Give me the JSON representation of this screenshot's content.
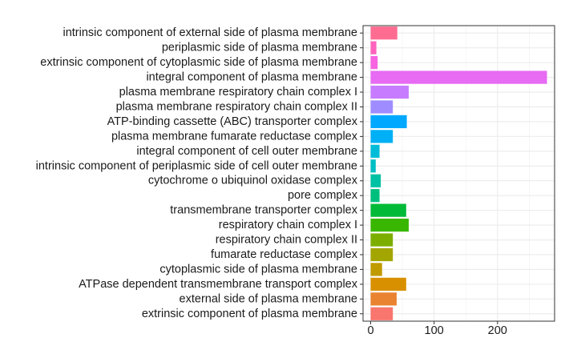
{
  "chart_data": {
    "type": "bar",
    "orientation": "horizontal",
    "title": "",
    "xlabel": "",
    "ylabel": "",
    "xlim": [
      -12,
      290
    ],
    "xticks": [
      0,
      100,
      200
    ],
    "grid": true,
    "legend": "none",
    "categories": [
      "intrinsic component of external side of plasma membrane",
      "periplasmic side of plasma membrane",
      "extrinsic component of cytoplasmic side of plasma membrane",
      "integral component of plasma membrane",
      "plasma membrane respiratory chain complex I",
      "plasma membrane respiratory chain complex II",
      "ATP-binding cassette (ABC) transporter complex",
      "plasma membrane fumarate reductase complex",
      "integral component of cell outer membrane",
      "intrinsic component of periplasmic side of cell outer membrane",
      "cytochrome o ubiquinol oxidase complex",
      "pore complex",
      "transmembrane transporter complex",
      "respiratory chain complex I",
      "respiratory chain complex II",
      "fumarate reductase complex",
      "cytoplasmic side of plasma membrane",
      "ATPase dependent transmembrane transport complex",
      "external side of plasma membrane",
      "extrinsic component of plasma membrane"
    ],
    "values": [
      42,
      9,
      11,
      278,
      60,
      35,
      57,
      35,
      14,
      8,
      16,
      14,
      56,
      60,
      35,
      35,
      18,
      56,
      41,
      35
    ],
    "colors": [
      "#FF6C91",
      "#FF62BC",
      "#F763E0",
      "#E76BF3",
      "#C77CFF",
      "#9F8CFF",
      "#00A9FF",
      "#00B0F6",
      "#00BCD8",
      "#00BFC4",
      "#00C1A3",
      "#00BF7D",
      "#00BA38",
      "#39B600",
      "#7CAE00",
      "#A3A500",
      "#C09B00",
      "#D89000",
      "#EA8331",
      "#F8766D"
    ]
  }
}
